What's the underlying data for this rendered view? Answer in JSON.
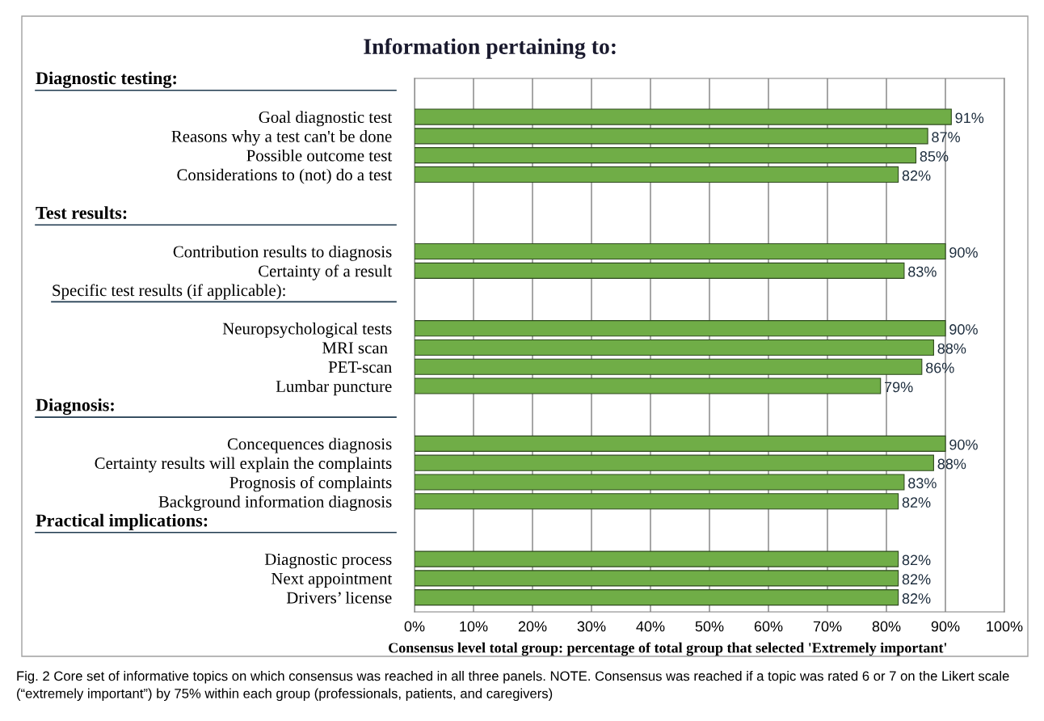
{
  "chart_data": {
    "type": "bar",
    "orientation": "horizontal",
    "title": "Information pertaining to:",
    "xlabel": "Consensus level total group: percentage of total group that selected 'Extremely important'",
    "categories": [
      null,
      null,
      "Goal diagnostic test",
      "Reasons why a test can't be done",
      "Possible outcome test",
      "Considerations to (not) do a test",
      null,
      null,
      null,
      "Contribution results to diagnosis",
      "Certainty of a result",
      null,
      null,
      "Neuropsychological tests",
      "MRI scan ",
      "PET-scan",
      "Lumbar puncture",
      null,
      null,
      "Concequences diagnosis",
      "Certainty results will explain the complaints",
      "Prognosis of complaints",
      "Background information diagnosis",
      null,
      null,
      "Diagnostic process",
      "Next appointment",
      "Drivers’ license"
    ],
    "values": [
      null,
      null,
      91,
      87,
      85,
      82,
      null,
      null,
      null,
      90,
      83,
      null,
      null,
      90,
      88,
      86,
      79,
      null,
      null,
      90,
      88,
      83,
      82,
      null,
      null,
      82,
      82,
      82
    ],
    "value_labels": [
      null,
      null,
      "91%",
      "87%",
      "85%",
      "82%",
      null,
      null,
      null,
      "90%",
      "83%",
      null,
      null,
      "90%",
      "88%",
      "86%",
      "79%",
      null,
      null,
      "90%",
      "88%",
      "83%",
      "82%",
      null,
      null,
      "82%",
      "82%",
      "82%"
    ],
    "color": "#70ad47",
    "xlim": [
      0,
      100
    ],
    "xticks": [
      {
        "value": 0,
        "label": "0%"
      },
      {
        "value": 10,
        "label": "10%"
      },
      {
        "value": 20,
        "label": "20%"
      },
      {
        "value": 30,
        "label": "30%"
      },
      {
        "value": 40,
        "label": "40%"
      },
      {
        "value": 50,
        "label": "50%"
      },
      {
        "value": 60,
        "label": "60%"
      },
      {
        "value": 70,
        "label": "70%"
      },
      {
        "value": 80,
        "label": "80%"
      },
      {
        "value": 90,
        "label": "90%"
      },
      {
        "value": 100,
        "label": "100%"
      }
    ],
    "grid": "x",
    "legend": false,
    "annotations": [
      "Diagnostic testing:",
      "Test results:",
      "Specific test results (if applicable):",
      "Diagnosis:",
      "Practical implications:",
      "Fig. 2 Core set of informative topics on which consensus was reached in all three panels. NOTE. Consensus was reached if a topic was rated 6 or 7 on the Likert scale (“extremely important”) by 75% within each group (professionals, patients, and caregivers)"
    ]
  }
}
